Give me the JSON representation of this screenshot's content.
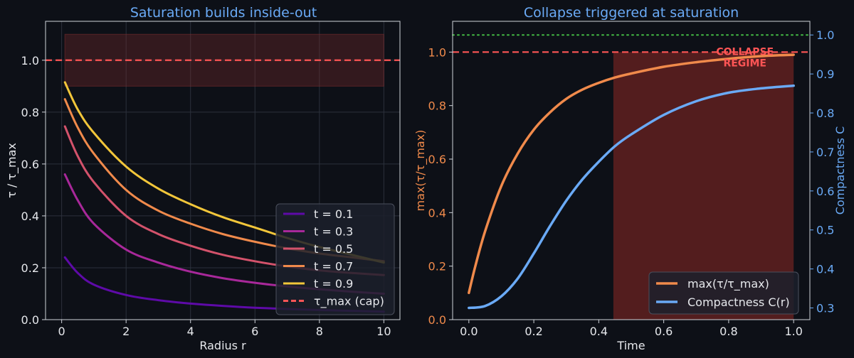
{
  "chart_data": [
    {
      "type": "line",
      "title": "Saturation builds inside-out",
      "xlabel": "Radius r",
      "ylabel": "τ / τ_max",
      "xlim": [
        -0.5,
        10.5
      ],
      "ylim": [
        0.0,
        1.15
      ],
      "xticks": [
        "0",
        "2",
        "4",
        "6",
        "8",
        "10"
      ],
      "yticks": [
        "0.0",
        "0.2",
        "0.4",
        "0.6",
        "0.8",
        "1.0"
      ],
      "grid": true,
      "legend_position": "lower-right",
      "saturation_band": {
        "x": [
          0.1,
          10
        ],
        "y": [
          0.9,
          1.1
        ]
      },
      "cap": {
        "y": 1.0,
        "name": "τ_max (cap)",
        "color": "#ff5555"
      },
      "series": [
        {
          "name": "t = 0.1",
          "color": "#5e0aa8",
          "points": [
            [
              0.1,
              0.24
            ],
            [
              0.5,
              0.18
            ],
            [
              1,
              0.135
            ],
            [
              2,
              0.095
            ],
            [
              3,
              0.075
            ],
            [
              4,
              0.062
            ],
            [
              5,
              0.053
            ],
            [
              6,
              0.046
            ],
            [
              7,
              0.041
            ],
            [
              8,
              0.037
            ],
            [
              9,
              0.034
            ],
            [
              10,
              0.031
            ]
          ]
        },
        {
          "name": "t = 0.3",
          "color": "#a8289a",
          "points": [
            [
              0.1,
              0.56
            ],
            [
              0.5,
              0.46
            ],
            [
              1,
              0.37
            ],
            [
              2,
              0.27
            ],
            [
              3,
              0.22
            ],
            [
              4,
              0.185
            ],
            [
              5,
              0.16
            ],
            [
              6,
              0.142
            ],
            [
              7,
              0.128
            ],
            [
              8,
              0.117
            ],
            [
              9,
              0.108
            ],
            [
              10,
              0.1
            ]
          ]
        },
        {
          "name": "t = 0.5",
          "color": "#d3526b",
          "points": [
            [
              0.1,
              0.745
            ],
            [
              0.5,
              0.63
            ],
            [
              1,
              0.53
            ],
            [
              2,
              0.4
            ],
            [
              3,
              0.33
            ],
            [
              4,
              0.285
            ],
            [
              5,
              0.25
            ],
            [
              6,
              0.225
            ],
            [
              7,
              0.205
            ],
            [
              8,
              0.19
            ],
            [
              9,
              0.18
            ],
            [
              10,
              0.172
            ]
          ]
        },
        {
          "name": "t = 0.7",
          "color": "#f08a4b",
          "points": [
            [
              0.1,
              0.85
            ],
            [
              0.5,
              0.74
            ],
            [
              1,
              0.64
            ],
            [
              2,
              0.5
            ],
            [
              3,
              0.42
            ],
            [
              4,
              0.37
            ],
            [
              5,
              0.33
            ],
            [
              6,
              0.3
            ],
            [
              7,
              0.275
            ],
            [
              8,
              0.255
            ],
            [
              9,
              0.24
            ],
            [
              10,
              0.225
            ]
          ]
        },
        {
          "name": "t = 0.9",
          "color": "#f2c63a",
          "points": [
            [
              0.1,
              0.915
            ],
            [
              0.5,
              0.81
            ],
            [
              1,
              0.72
            ],
            [
              2,
              0.59
            ],
            [
              3,
              0.505
            ],
            [
              4,
              0.445
            ],
            [
              5,
              0.395
            ],
            [
              6,
              0.355
            ],
            [
              7,
              0.315
            ],
            [
              8,
              0.28
            ],
            [
              9,
              0.25
            ],
            [
              10,
              0.22
            ]
          ]
        }
      ]
    },
    {
      "type": "line",
      "title": "Collapse triggered at saturation",
      "xlabel": "Time",
      "ylabel": "max(τ/τ_max)",
      "y2label": "Compactness C",
      "xlim": [
        -0.05,
        1.05
      ],
      "ylim": [
        0.0,
        1.115
      ],
      "y2lim": [
        0.27,
        1.035
      ],
      "xticks": [
        "0.0",
        "0.2",
        "0.4",
        "0.6",
        "0.8",
        "1.0"
      ],
      "yticks": [
        "0.0",
        "0.2",
        "0.4",
        "0.6",
        "0.8",
        "1.0"
      ],
      "y2ticks": [
        "0.3",
        "0.4",
        "0.5",
        "0.6",
        "0.7",
        "0.8",
        "0.9",
        "1.0"
      ],
      "grid": false,
      "legend_position": "lower-right",
      "collapse_region": {
        "x": [
          0.445,
          1.0
        ],
        "y": [
          0.0,
          1.0
        ]
      },
      "annotation": {
        "lines": [
          "COLLAPSE",
          "REGIME"
        ],
        "x": 0.85,
        "y": 0.97,
        "color": "#ff5555"
      },
      "cap_line": {
        "y": 1.0,
        "color": "#ff5555"
      },
      "compactness_limit": {
        "y2": 1.0,
        "color": "#44bb44"
      },
      "series": [
        {
          "name": "max(τ/τ_max)",
          "axis": "left",
          "color": "#f08a4b",
          "points": [
            [
              0,
              0.1
            ],
            [
              0.02,
              0.2
            ],
            [
              0.05,
              0.33
            ],
            [
              0.1,
              0.5
            ],
            [
              0.15,
              0.62
            ],
            [
              0.2,
              0.71
            ],
            [
              0.25,
              0.775
            ],
            [
              0.3,
              0.825
            ],
            [
              0.35,
              0.86
            ],
            [
              0.4,
              0.885
            ],
            [
              0.45,
              0.905
            ],
            [
              0.5,
              0.92
            ],
            [
              0.6,
              0.945
            ],
            [
              0.7,
              0.962
            ],
            [
              0.8,
              0.975
            ],
            [
              0.9,
              0.985
            ],
            [
              1.0,
              0.99
            ]
          ]
        },
        {
          "name": "Compactness C(r)",
          "axis": "right",
          "color": "#6aaaf6",
          "points": [
            [
              0,
              0.3
            ],
            [
              0.05,
              0.305
            ],
            [
              0.1,
              0.33
            ],
            [
              0.15,
              0.375
            ],
            [
              0.2,
              0.44
            ],
            [
              0.25,
              0.51
            ],
            [
              0.3,
              0.575
            ],
            [
              0.35,
              0.63
            ],
            [
              0.4,
              0.675
            ],
            [
              0.45,
              0.715
            ],
            [
              0.5,
              0.745
            ],
            [
              0.6,
              0.795
            ],
            [
              0.7,
              0.83
            ],
            [
              0.8,
              0.852
            ],
            [
              0.9,
              0.863
            ],
            [
              1.0,
              0.87
            ]
          ]
        }
      ]
    }
  ]
}
